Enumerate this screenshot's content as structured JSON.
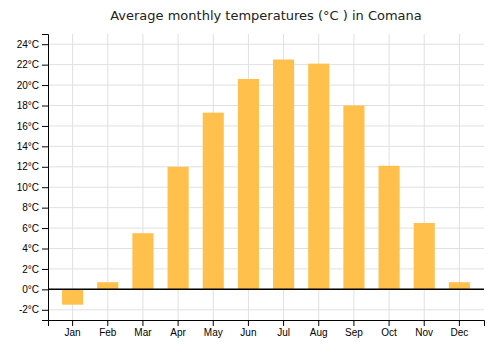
{
  "chart_data": {
    "type": "bar",
    "title": "Average monthly temperatures (°C ) in Comana",
    "categories": [
      "Jan",
      "Feb",
      "Mar",
      "Apr",
      "May",
      "Jun",
      "Jul",
      "Aug",
      "Sep",
      "Oct",
      "Nov",
      "Dec"
    ],
    "values": [
      -1.5,
      0.7,
      5.5,
      12.0,
      17.3,
      20.6,
      22.5,
      22.1,
      18.0,
      12.1,
      6.5,
      0.7
    ],
    "color": "#FFC04C",
    "ylim": [
      -3,
      25
    ],
    "yticks": [
      {
        "value": -2,
        "label": "-2°C"
      },
      {
        "value": 0,
        "label": "0°C"
      },
      {
        "value": 2,
        "label": "2°C"
      },
      {
        "value": 4,
        "label": "4°C"
      },
      {
        "value": 6,
        "label": "6°C"
      },
      {
        "value": 8,
        "label": "8°C"
      },
      {
        "value": 10,
        "label": "10°C"
      },
      {
        "value": 12,
        "label": "12°C"
      },
      {
        "value": 14,
        "label": "14°C"
      },
      {
        "value": 16,
        "label": "16°C"
      },
      {
        "value": 18,
        "label": "18°C"
      },
      {
        "value": 20,
        "label": "20°C"
      },
      {
        "value": 22,
        "label": "22°C"
      },
      {
        "value": 24,
        "label": "24°C"
      }
    ],
    "grid": true
  }
}
